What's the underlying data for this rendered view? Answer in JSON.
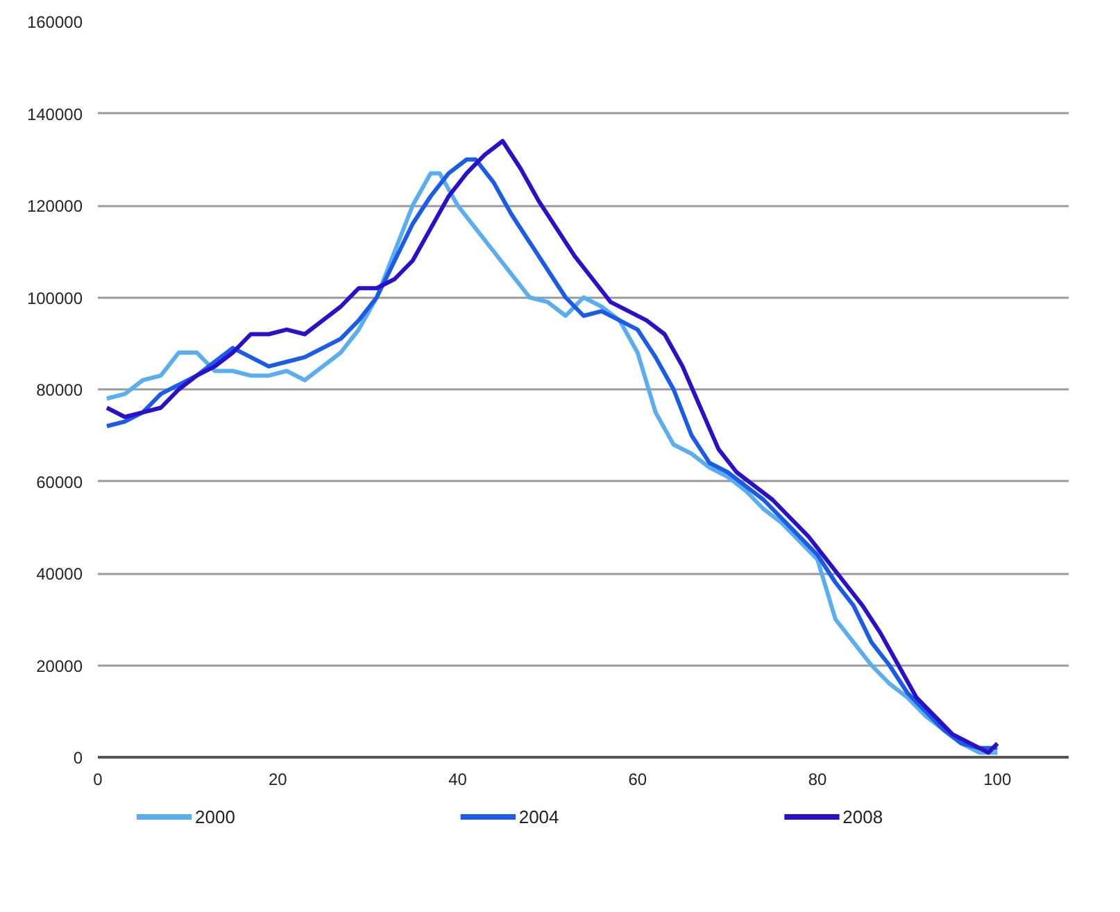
{
  "chart_data": {
    "type": "line",
    "xlim": [
      0,
      108
    ],
    "xticks": [
      0,
      20,
      40,
      60,
      80,
      100
    ],
    "ylim": [
      0,
      160000
    ],
    "yticks": [
      0,
      20000,
      40000,
      60000,
      80000,
      100000,
      120000,
      140000,
      160000
    ],
    "grid": "y",
    "legend": "bottom",
    "marker": "none",
    "line_style": "solid",
    "series": [
      {
        "name": "2000",
        "color": "#5aaef0",
        "x": [
          1,
          3,
          5,
          7,
          9,
          11,
          13,
          15,
          17,
          19,
          21,
          23,
          25,
          27,
          29,
          31,
          33,
          35,
          37,
          38,
          40,
          42,
          44,
          46,
          48,
          50,
          52,
          54,
          56,
          58,
          60,
          62,
          64,
          66,
          68,
          70,
          72,
          74,
          76,
          78,
          80,
          82,
          84,
          86,
          88,
          90,
          92,
          94,
          96,
          98,
          100
        ],
        "values": [
          78000,
          79000,
          82000,
          83000,
          88000,
          88000,
          84000,
          84000,
          83000,
          83000,
          84000,
          82000,
          85000,
          88000,
          93000,
          100000,
          110000,
          120000,
          127000,
          127000,
          120000,
          115000,
          110000,
          105000,
          100000,
          99000,
          96000,
          100000,
          98000,
          95000,
          88000,
          75000,
          68000,
          66000,
          63000,
          61000,
          58000,
          54000,
          51000,
          47000,
          43000,
          30000,
          25000,
          20000,
          16000,
          13000,
          9000,
          6000,
          3000,
          1000,
          1000
        ]
      },
      {
        "name": "2004",
        "color": "#1a5ce8",
        "x": [
          1,
          3,
          5,
          7,
          9,
          11,
          13,
          15,
          17,
          19,
          21,
          23,
          25,
          27,
          29,
          31,
          33,
          35,
          37,
          39,
          41,
          42,
          44,
          46,
          48,
          50,
          52,
          54,
          56,
          58,
          60,
          62,
          64,
          66,
          68,
          70,
          72,
          74,
          76,
          78,
          80,
          82,
          84,
          86,
          88,
          90,
          92,
          94,
          96,
          98,
          100
        ],
        "values": [
          72000,
          73000,
          75000,
          79000,
          81000,
          83000,
          86000,
          89000,
          87000,
          85000,
          86000,
          87000,
          89000,
          91000,
          95000,
          100000,
          108000,
          116000,
          122000,
          127000,
          130000,
          130000,
          125000,
          118000,
          112000,
          106000,
          100000,
          96000,
          97000,
          95000,
          93000,
          87000,
          80000,
          70000,
          64000,
          62000,
          59000,
          56000,
          52000,
          48000,
          44000,
          38000,
          33000,
          25000,
          20000,
          14000,
          10000,
          6000,
          3000,
          2000,
          2000
        ]
      },
      {
        "name": "2008",
        "color": "#2a10c8",
        "x": [
          1,
          3,
          5,
          7,
          9,
          11,
          13,
          15,
          17,
          19,
          21,
          23,
          25,
          27,
          29,
          31,
          33,
          35,
          37,
          39,
          41,
          43,
          45,
          47,
          49,
          51,
          53,
          55,
          57,
          59,
          61,
          63,
          65,
          67,
          69,
          71,
          73,
          75,
          77,
          79,
          81,
          83,
          85,
          87,
          89,
          91,
          93,
          95,
          97,
          99,
          100
        ],
        "values": [
          76000,
          74000,
          75000,
          76000,
          80000,
          83000,
          85000,
          88000,
          92000,
          92000,
          93000,
          92000,
          95000,
          98000,
          102000,
          102000,
          104000,
          108000,
          115000,
          122000,
          127000,
          131000,
          134000,
          128000,
          121000,
          115000,
          109000,
          104000,
          99000,
          97000,
          95000,
          92000,
          85000,
          76000,
          67000,
          62000,
          59000,
          56000,
          52000,
          48000,
          43000,
          38000,
          33000,
          27000,
          20000,
          13000,
          9000,
          5000,
          3000,
          1000,
          3000
        ]
      }
    ]
  }
}
